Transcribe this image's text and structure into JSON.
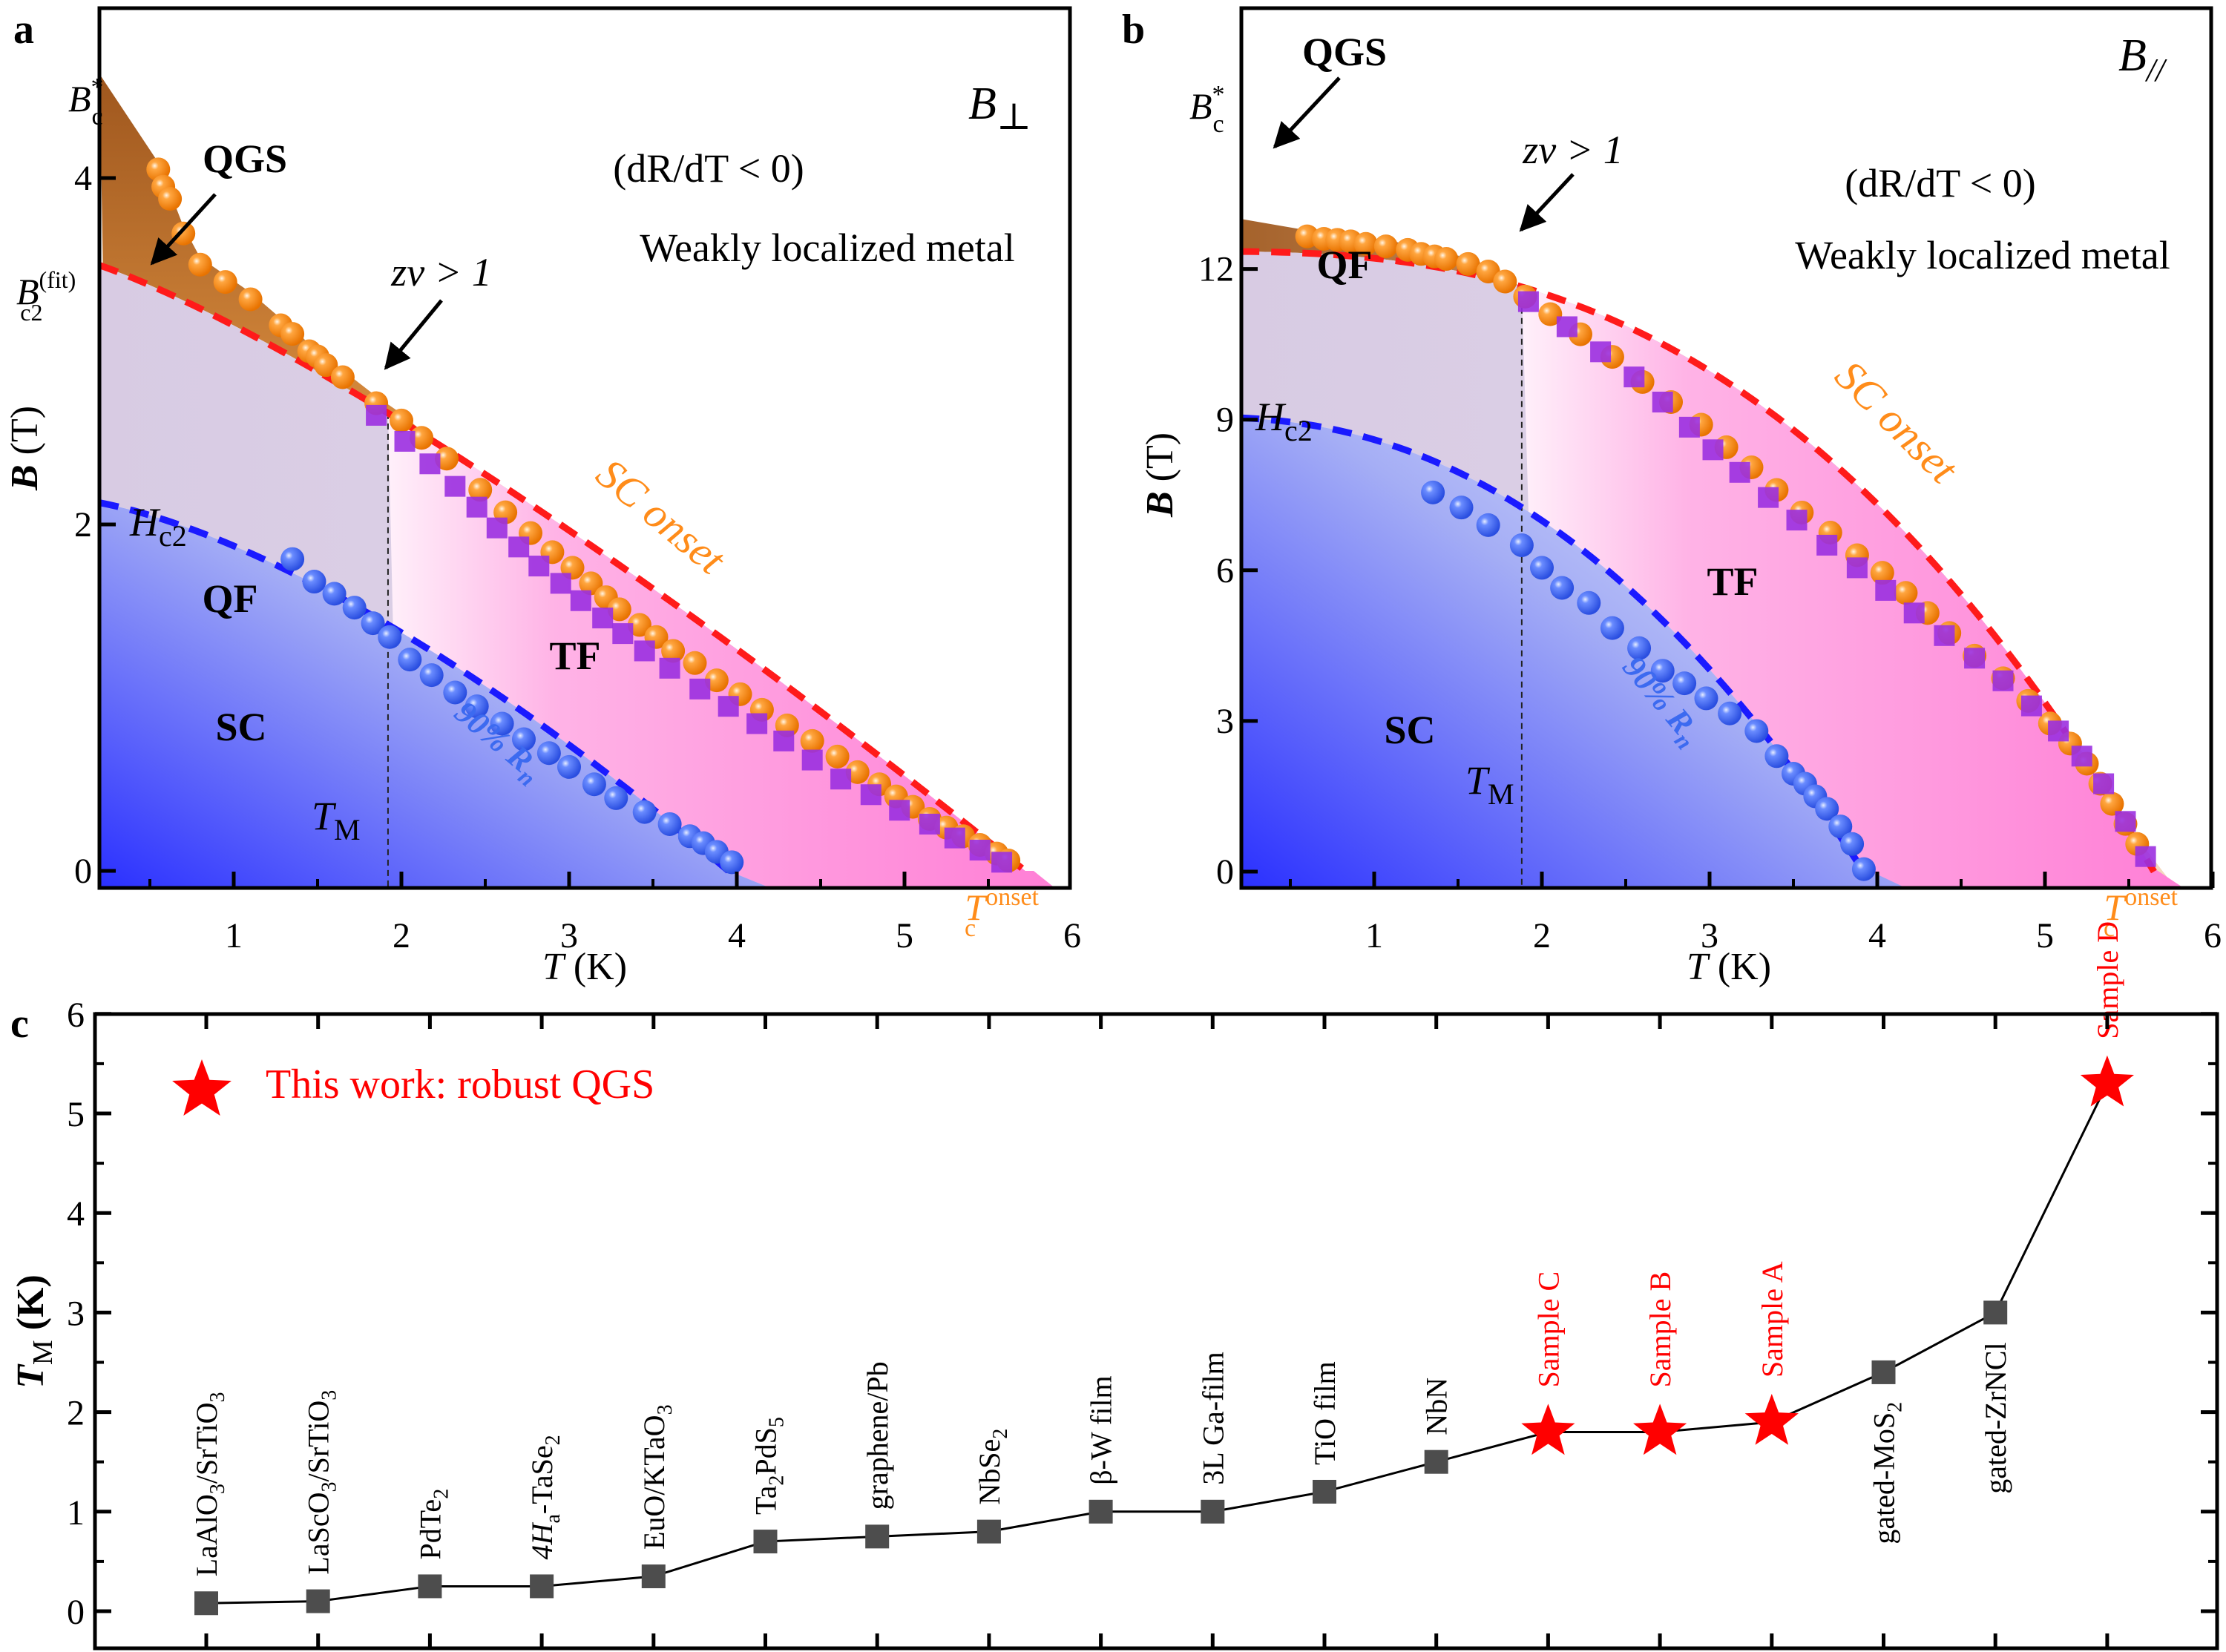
{
  "figure": {
    "panel_letters": [
      "a",
      "b",
      "c"
    ]
  },
  "chart_data": [
    {
      "id": "a",
      "type": "scatter",
      "title": "B⊥",
      "field_label_main": "B",
      "field_label_sub": "⊥",
      "xlabel": "T (K)",
      "ylabel": "B (T)",
      "xlim": [
        0.2,
        5.8
      ],
      "ylim": [
        -0.1,
        5.0
      ],
      "xticks": [
        1,
        2,
        3,
        4,
        5,
        6
      ],
      "yticks": [
        0,
        2,
        4
      ],
      "grid": false,
      "annotations": {
        "regime": "(dR/dT < 0)",
        "metal": "Weakly localized metal",
        "qgs": "QGS",
        "qf": "QF",
        "tf": "TF",
        "sc": "SC",
        "zv": "zν > 1",
        "sc_onset": "SC onset",
        "r90": "90% R",
        "r90_sub": "n",
        "hc2": "H",
        "hc2_sub": "c2",
        "tm": "T",
        "tm_sub": "M",
        "bc_star": "B",
        "bc_star_sub": "c",
        "bc_star_sup": "*",
        "bc2fit": "B",
        "bc2fit_sub": "c2",
        "bc2fit_sup": "(fit)",
        "tc_onset": "T",
        "tc_onset_sub": "c",
        "tc_onset_sup": "onset"
      },
      "T_M": 1.92,
      "Bc_star": 4.6,
      "Bc2_fit": 3.55,
      "Tc_onset": 5.7,
      "series": [
        {
          "name": "SC onset (circles)",
          "color": "#ff8c1a",
          "marker": "circle",
          "x": [
            0.55,
            0.58,
            0.62,
            0.7,
            0.8,
            0.95,
            1.1,
            1.28,
            1.35,
            1.45,
            1.5,
            1.55,
            1.65,
            1.85,
            2.0,
            2.12,
            2.27,
            2.47,
            2.62,
            2.77,
            2.9,
            3.02,
            3.13,
            3.22,
            3.3,
            3.42,
            3.52,
            3.62,
            3.75,
            3.88,
            4.02,
            4.15,
            4.3,
            4.45,
            4.6,
            4.72,
            4.85,
            4.95,
            5.05,
            5.15,
            5.25,
            5.35,
            5.45,
            5.55,
            5.62
          ],
          "y": [
            4.05,
            3.95,
            3.88,
            3.68,
            3.5,
            3.4,
            3.3,
            3.15,
            3.1,
            3.0,
            2.97,
            2.92,
            2.85,
            2.7,
            2.6,
            2.5,
            2.38,
            2.2,
            2.07,
            1.95,
            1.84,
            1.75,
            1.66,
            1.58,
            1.51,
            1.42,
            1.35,
            1.27,
            1.2,
            1.1,
            1.02,
            0.93,
            0.84,
            0.75,
            0.66,
            0.57,
            0.5,
            0.43,
            0.37,
            0.3,
            0.25,
            0.2,
            0.15,
            0.1,
            0.06
          ]
        },
        {
          "name": "Onset (squares)",
          "color": "#9b30e0",
          "marker": "square",
          "x": [
            1.85,
            2.02,
            2.17,
            2.32,
            2.45,
            2.57,
            2.7,
            2.82,
            2.95,
            3.07,
            3.2,
            3.32,
            3.45,
            3.6,
            3.78,
            3.95,
            4.12,
            4.28,
            4.45,
            4.62,
            4.8,
            4.97,
            5.15,
            5.3,
            5.45,
            5.58
          ],
          "y": [
            2.63,
            2.48,
            2.35,
            2.22,
            2.1,
            1.98,
            1.87,
            1.76,
            1.66,
            1.56,
            1.46,
            1.37,
            1.27,
            1.17,
            1.05,
            0.95,
            0.85,
            0.75,
            0.64,
            0.53,
            0.44,
            0.35,
            0.27,
            0.19,
            0.12,
            0.05
          ]
        },
        {
          "name": "90% Rn",
          "color": "#3c6af0",
          "marker": "circle",
          "x": [
            1.35,
            1.48,
            1.6,
            1.72,
            1.83,
            1.93,
            2.05,
            2.18,
            2.32,
            2.45,
            2.6,
            2.73,
            2.88,
            3.0,
            3.15,
            3.28,
            3.45,
            3.6,
            3.72,
            3.8,
            3.88,
            3.97
          ],
          "y": [
            1.8,
            1.67,
            1.6,
            1.52,
            1.43,
            1.35,
            1.22,
            1.13,
            1.03,
            0.95,
            0.85,
            0.76,
            0.68,
            0.6,
            0.5,
            0.42,
            0.34,
            0.27,
            0.2,
            0.16,
            0.11,
            0.05
          ]
        }
      ],
      "fit_curves": [
        {
          "name": "Bc2 fit (SC onset)",
          "color": "#ff1a1a",
          "style": "dashed",
          "B0": 3.55,
          "Tc": 5.72
        },
        {
          "name": "Hc2",
          "color": "#1a1aff",
          "style": "dashed",
          "B0": 2.15,
          "Tc": 3.95
        }
      ]
    },
    {
      "id": "b",
      "type": "scatter",
      "title": "B//",
      "field_label_main": "B",
      "field_label_sub": "//",
      "xlabel": "T (K)",
      "ylabel": "B (T)",
      "xlim": [
        0.2,
        5.8
      ],
      "ylim": [
        -0.3,
        14.9
      ],
      "xticks": [
        1,
        2,
        3,
        4,
        5,
        6
      ],
      "yticks": [
        0,
        3,
        6,
        9,
        12
      ],
      "grid": false,
      "annotations": {
        "regime": "(dR/dT < 0)",
        "metal": "Weakly localized metal",
        "qgs": "QGS",
        "qf": "QF",
        "tf": "TF",
        "sc": "SC",
        "zv": "zν > 1",
        "sc_onset": "SC onset",
        "r90": "90% R",
        "r90_sub": "n",
        "hc2": "H",
        "hc2_sub": "c2",
        "tm": "T",
        "tm_sub": "M",
        "bc_star": "B",
        "bc_star_sub": "c",
        "bc_star_sup": "*",
        "tc_onset": "T",
        "tc_onset_sub": "c",
        "tc_onset_sup": "onset"
      },
      "T_M": 1.88,
      "Bc_star": 13.0,
      "Tc_onset": 5.65,
      "series": [
        {
          "name": "SC onset (circles)",
          "color": "#ff8c1a",
          "marker": "circle",
          "x": [
            0.6,
            0.7,
            0.78,
            0.86,
            0.95,
            1.07,
            1.2,
            1.28,
            1.36,
            1.43,
            1.56,
            1.68,
            1.78,
            1.9,
            2.05,
            2.23,
            2.42,
            2.6,
            2.77,
            2.95,
            3.1,
            3.25,
            3.4,
            3.55,
            3.72,
            3.88,
            4.03,
            4.17,
            4.3,
            4.43,
            4.58,
            4.75,
            4.9,
            5.03,
            5.15,
            5.25,
            5.33,
            5.4,
            5.48,
            5.55
          ],
          "y": [
            12.65,
            12.6,
            12.58,
            12.55,
            12.5,
            12.45,
            12.38,
            12.3,
            12.25,
            12.2,
            12.1,
            11.95,
            11.75,
            11.45,
            11.1,
            10.7,
            10.25,
            9.75,
            9.35,
            8.9,
            8.45,
            8.05,
            7.6,
            7.15,
            6.75,
            6.3,
            5.95,
            5.55,
            5.15,
            4.75,
            4.3,
            3.85,
            3.4,
            2.95,
            2.55,
            2.15,
            1.75,
            1.35,
            0.95,
            0.55
          ]
        },
        {
          "name": "Onset (squares)",
          "color": "#9b30e0",
          "marker": "square",
          "x": [
            1.92,
            2.15,
            2.35,
            2.55,
            2.72,
            2.88,
            3.02,
            3.18,
            3.35,
            3.52,
            3.7,
            3.88,
            4.05,
            4.22,
            4.4,
            4.58,
            4.75,
            4.92,
            5.08,
            5.22,
            5.35,
            5.48,
            5.6
          ],
          "y": [
            11.35,
            10.85,
            10.35,
            9.85,
            9.35,
            8.85,
            8.4,
            7.95,
            7.45,
            7.0,
            6.5,
            6.05,
            5.6,
            5.15,
            4.7,
            4.25,
            3.8,
            3.3,
            2.8,
            2.3,
            1.75,
            1.0,
            0.3
          ]
        },
        {
          "name": "90% Rn",
          "color": "#3c6af0",
          "marker": "circle",
          "x": [
            1.35,
            1.52,
            1.68,
            1.88,
            2.0,
            2.12,
            2.28,
            2.42,
            2.58,
            2.72,
            2.85,
            2.98,
            3.12,
            3.28,
            3.4,
            3.5,
            3.57,
            3.63,
            3.7,
            3.78,
            3.85,
            3.92
          ],
          "y": [
            7.55,
            7.25,
            6.9,
            6.5,
            6.05,
            5.65,
            5.35,
            4.85,
            4.45,
            4.0,
            3.75,
            3.45,
            3.15,
            2.8,
            2.3,
            1.95,
            1.75,
            1.5,
            1.25,
            0.9,
            0.55,
            0.05
          ]
        }
      ],
      "fit_curves": [
        {
          "name": "Bc2 fit (SC onset)",
          "color": "#ff1a1a",
          "style": "dashed",
          "B0": 12.35,
          "Tc": 5.65
        },
        {
          "name": "Hc2",
          "color": "#1a1aff",
          "style": "dashed",
          "B0": 9.05,
          "Tc": 3.92
        }
      ]
    },
    {
      "id": "c",
      "type": "line",
      "title": "",
      "xlabel": "",
      "ylabel": "T_M (K)",
      "ylabel_main": "T",
      "ylabel_sub": "M",
      "ylabel_unit": " (K)",
      "ylim": [
        -0.15,
        6
      ],
      "yticks": [
        0,
        1,
        2,
        3,
        4,
        5,
        6
      ],
      "grid": false,
      "legend": {
        "label": "This work: robust QGS",
        "placement": "top-left",
        "color": "#ff0000",
        "marker": "star"
      },
      "categories": [
        {
          "label": "LaAlO",
          "sub": "3",
          "rest": "/SrTiO",
          "sub2": "3",
          "value": 0.08,
          "this_work": false
        },
        {
          "label": "LaScO",
          "sub": "3",
          "rest": "/SrTiO",
          "sub2": "3",
          "value": 0.1,
          "this_work": false
        },
        {
          "label": "PdTe",
          "sub": "2",
          "rest": "",
          "sub2": "",
          "value": 0.25,
          "this_work": false
        },
        {
          "label": "4H",
          "sub": "a",
          "rest": "-TaSe",
          "sub2": "2",
          "value": 0.25,
          "this_work": false
        },
        {
          "label": "EuO/KTaO",
          "sub": "3",
          "rest": "",
          "sub2": "",
          "value": 0.35,
          "this_work": false
        },
        {
          "label": "Ta",
          "sub": "2",
          "rest": "PdS",
          "sub2": "5",
          "value": 0.7,
          "this_work": false
        },
        {
          "label": "graphene/Pb",
          "sub": "",
          "rest": "",
          "sub2": "",
          "value": 0.75,
          "this_work": false
        },
        {
          "label": "NbSe",
          "sub": "2",
          "rest": "",
          "sub2": "",
          "value": 0.8,
          "this_work": false
        },
        {
          "label": "β-W film",
          "sub": "",
          "rest": "",
          "sub2": "",
          "value": 1.0,
          "this_work": false
        },
        {
          "label": "3L Ga-film",
          "sub": "",
          "rest": "",
          "sub2": "",
          "value": 1.0,
          "this_work": false
        },
        {
          "label": "TiO film",
          "sub": "",
          "rest": "",
          "sub2": "",
          "value": 1.2,
          "this_work": false
        },
        {
          "label": "NbN",
          "sub": "",
          "rest": "",
          "sub2": "",
          "value": 1.5,
          "this_work": false
        },
        {
          "label": "Sample C",
          "sub": "",
          "rest": "",
          "sub2": "",
          "value": 1.8,
          "this_work": true
        },
        {
          "label": "Sample B",
          "sub": "",
          "rest": "",
          "sub2": "",
          "value": 1.8,
          "this_work": true
        },
        {
          "label": "Sample A",
          "sub": "",
          "rest": "",
          "sub2": "",
          "value": 1.9,
          "this_work": true
        },
        {
          "label": "gated-MoS",
          "sub": "2",
          "rest": "",
          "sub2": "",
          "value": 2.4,
          "this_work": false
        },
        {
          "label": "gated-ZrNCl",
          "sub": "",
          "rest": "",
          "sub2": "",
          "value": 3.0,
          "this_work": false
        },
        {
          "label": "Sample D",
          "sub": "",
          "rest": "",
          "sub2": "",
          "value": 5.3,
          "this_work": true
        }
      ],
      "colors": {
        "reference": "#4d4d4d",
        "this_work": "#ff0000",
        "line": "#000000"
      }
    }
  ]
}
